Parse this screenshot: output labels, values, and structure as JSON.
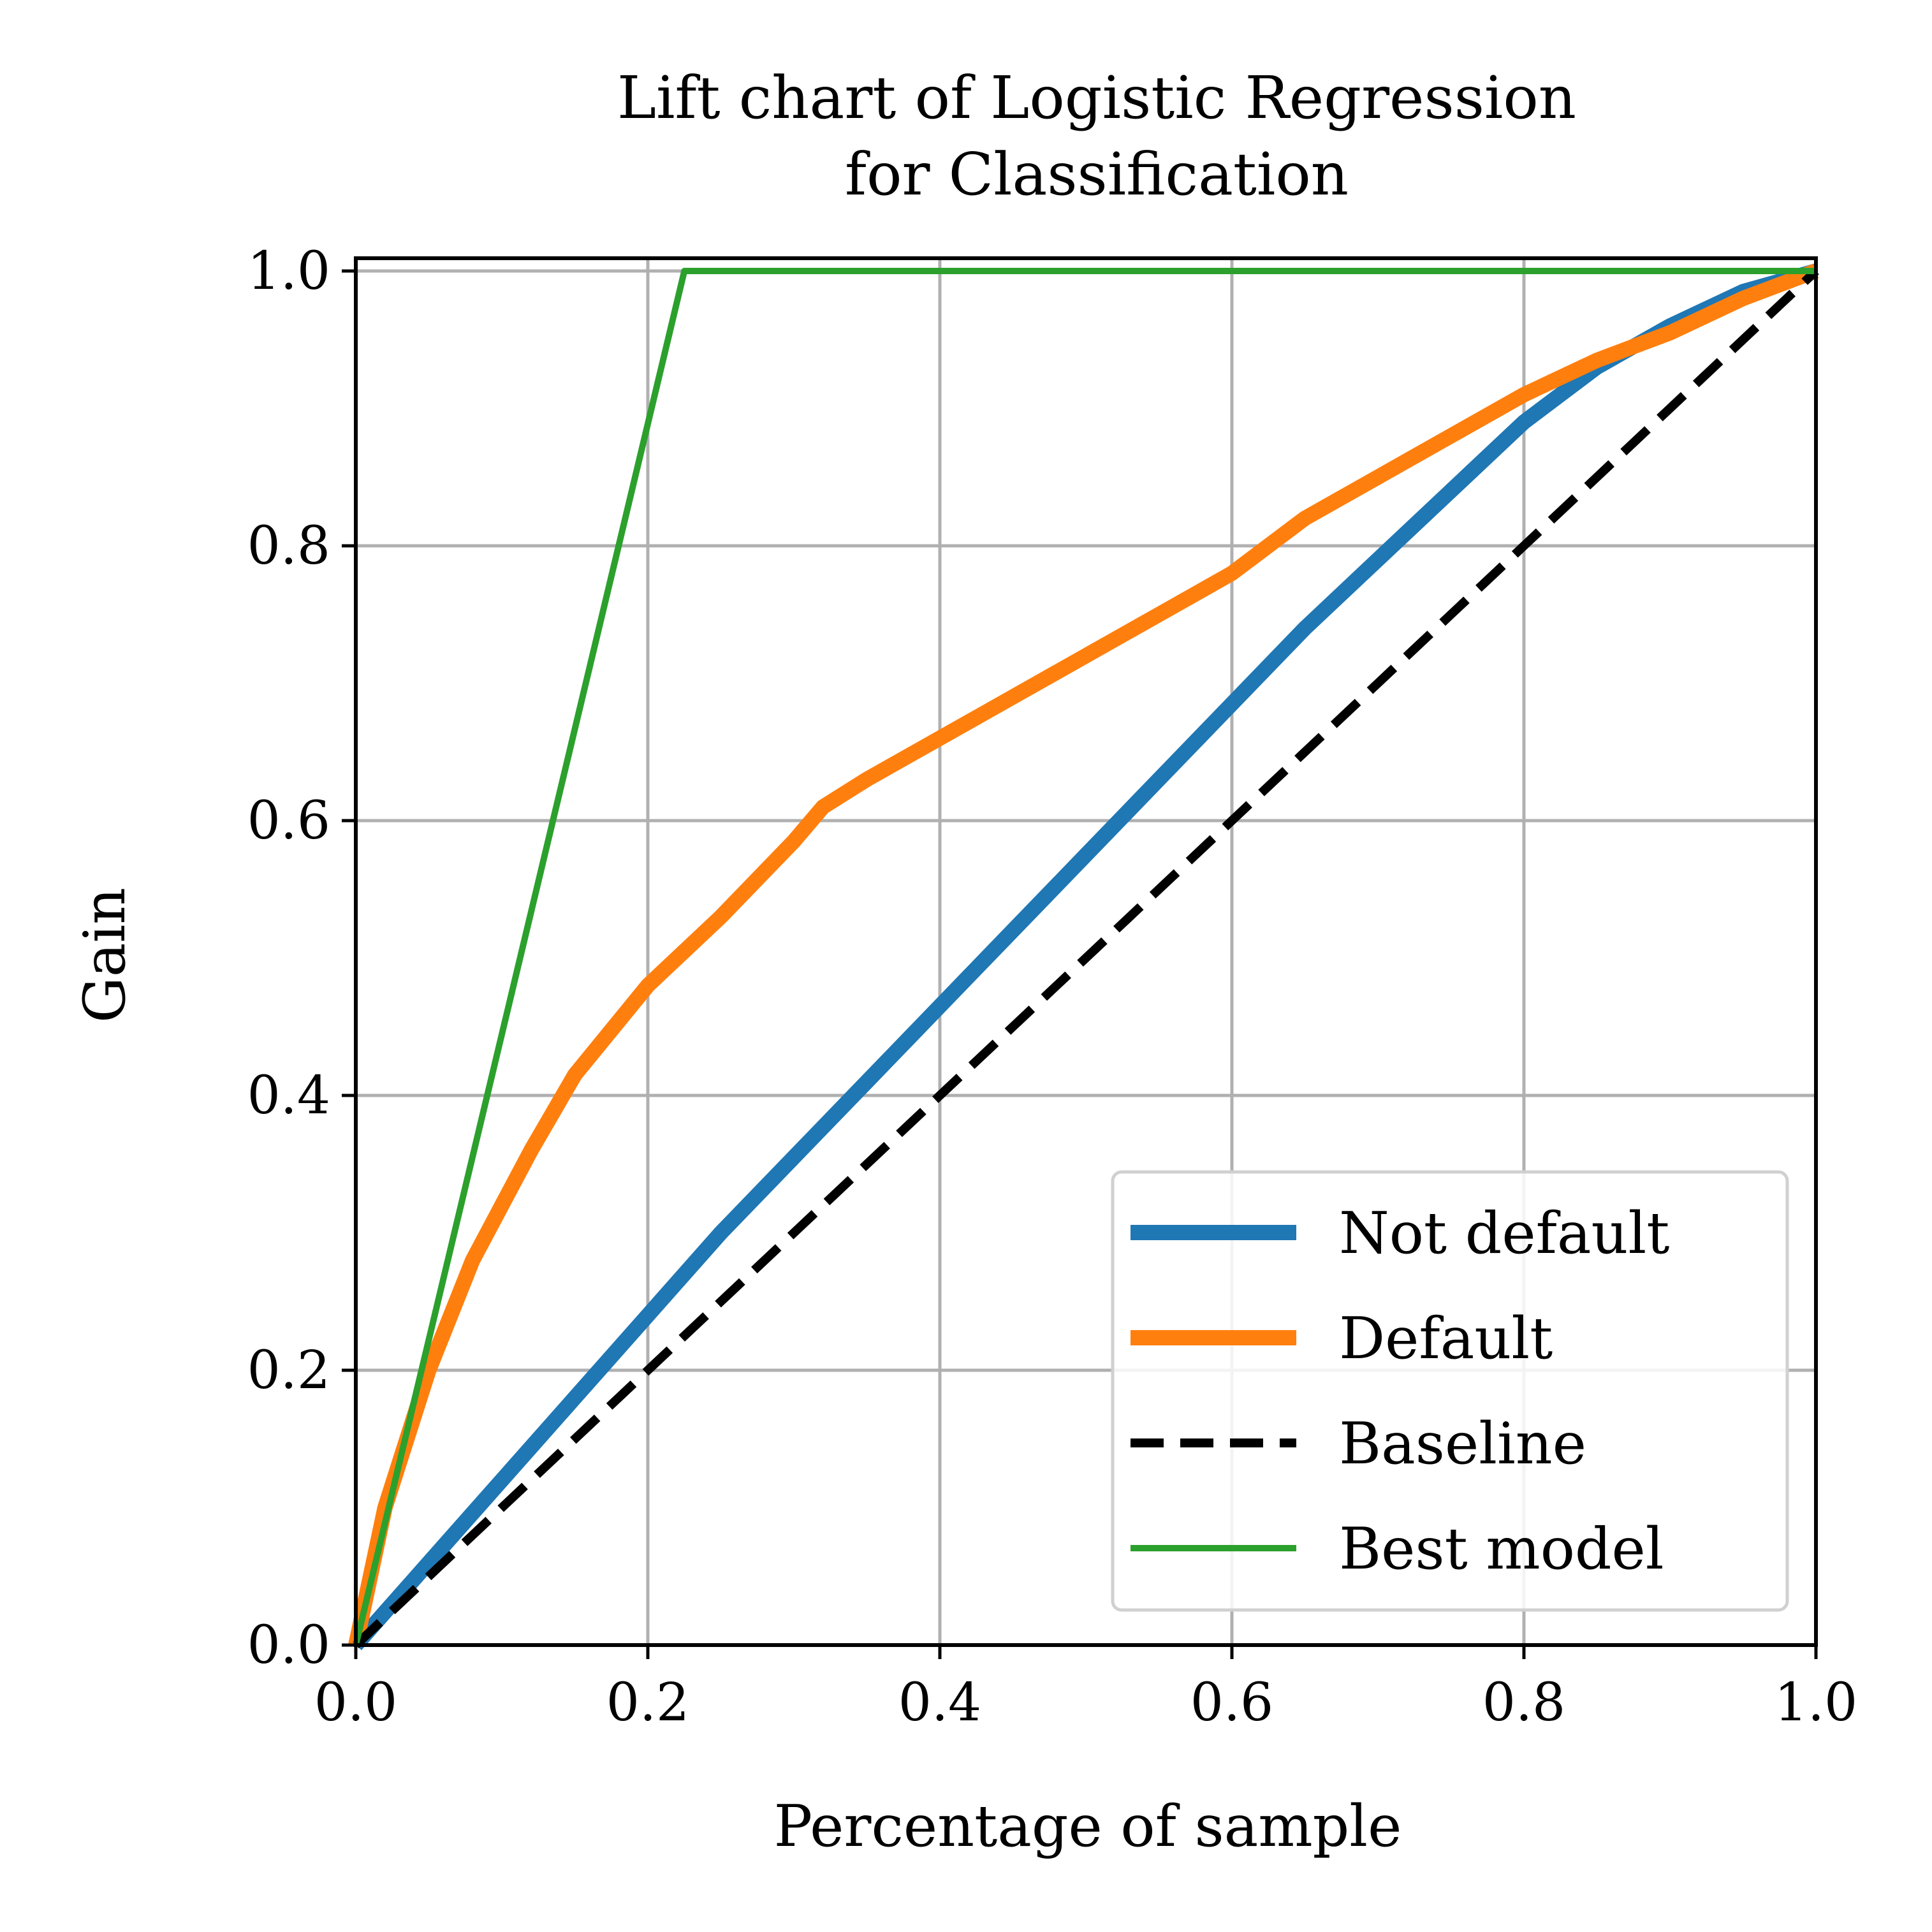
{
  "chart_data": {
    "type": "line",
    "title": [
      "Lift chart of Logistic Regression",
      "for Classification"
    ],
    "xlabel": "Percentage of sample",
    "ylabel": "Gain",
    "xlim": [
      0.0,
      1.0
    ],
    "ylim": [
      0.0,
      1.0
    ],
    "xticks": [
      "0.0",
      "0.2",
      "0.4",
      "0.6",
      "0.8",
      "1.0"
    ],
    "yticks": [
      "0.0",
      "0.2",
      "0.4",
      "0.6",
      "0.8",
      "1.0"
    ],
    "grid": true,
    "legend_position": "lower-right",
    "series": [
      {
        "name": "Not default",
        "color": "#1f77b4",
        "style": "solid-thick",
        "x": [
          0.0,
          0.05,
          0.1,
          0.15,
          0.2,
          0.25,
          0.3,
          0.35,
          0.4,
          0.45,
          0.5,
          0.55,
          0.6,
          0.65,
          0.7,
          0.75,
          0.8,
          0.85,
          0.9,
          0.95,
          1.0
        ],
        "y": [
          0.0,
          0.06,
          0.12,
          0.18,
          0.24,
          0.3,
          0.355,
          0.41,
          0.465,
          0.52,
          0.575,
          0.63,
          0.685,
          0.74,
          0.79,
          0.84,
          0.89,
          0.93,
          0.96,
          0.985,
          1.0
        ]
      },
      {
        "name": "Default",
        "color": "#ff7f0e",
        "style": "solid-thick",
        "x": [
          0.0,
          0.02,
          0.05,
          0.08,
          0.1,
          0.12,
          0.15,
          0.2,
          0.25,
          0.3,
          0.32,
          0.35,
          0.4,
          0.45,
          0.5,
          0.55,
          0.6,
          0.65,
          0.7,
          0.75,
          0.8,
          0.85,
          0.9,
          0.95,
          1.0
        ],
        "y": [
          0.0,
          0.1,
          0.2,
          0.28,
          0.32,
          0.36,
          0.415,
          0.48,
          0.53,
          0.585,
          0.61,
          0.63,
          0.66,
          0.69,
          0.72,
          0.75,
          0.78,
          0.82,
          0.85,
          0.88,
          0.91,
          0.935,
          0.955,
          0.98,
          1.0
        ]
      },
      {
        "name": "Baseline",
        "color": "#000000",
        "style": "dashed",
        "x": [
          0.0,
          1.0
        ],
        "y": [
          0.0,
          1.0
        ]
      },
      {
        "name": "Best model",
        "color": "#2ca02c",
        "style": "solid-thin",
        "x": [
          0.0,
          0.225,
          1.0
        ],
        "y": [
          0.0,
          1.0,
          1.0
        ]
      }
    ]
  }
}
